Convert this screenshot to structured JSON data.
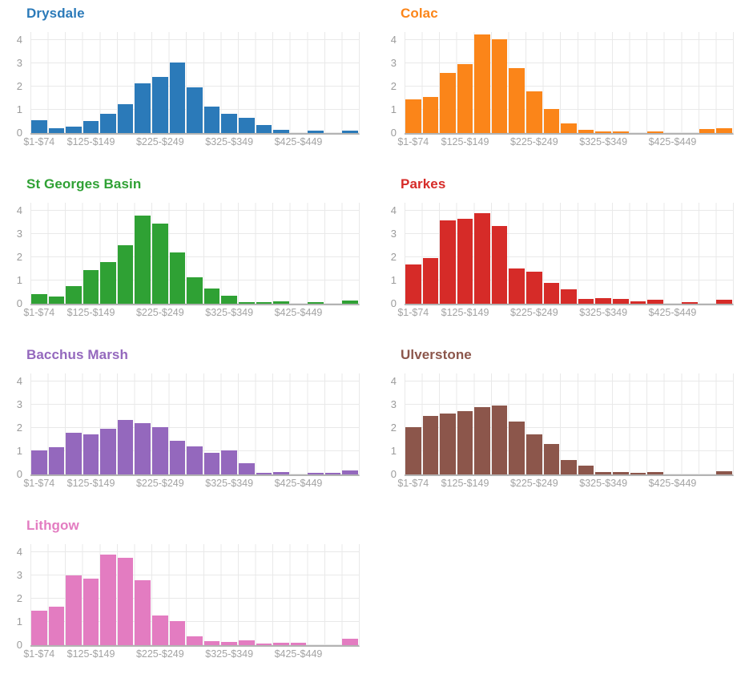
{
  "page": {
    "background": "#ffffff"
  },
  "style": {
    "grid_color": "#e9e9e9",
    "axis_line_color": "#b3b3b3",
    "tick_label_color": "#9b9b9b"
  },
  "chart_data": {
    "type": "bar",
    "subtype": "histogram-small-multiples",
    "grid": true,
    "bins": 19,
    "x_tick_labels": [
      "$1-$74",
      "$125-$149",
      "$225-$249",
      "$325-$349",
      "$425-$449"
    ],
    "x_tick_bin_positions": [
      0,
      3,
      7,
      11,
      15
    ],
    "y_ticks": [
      0,
      1,
      2,
      3,
      4
    ],
    "ylim": [
      0,
      4.35
    ],
    "series": [
      {
        "name": "Drysdale",
        "color": "#2b7ab9",
        "values": [
          0.55,
          0.22,
          0.27,
          0.5,
          0.82,
          1.25,
          2.15,
          2.4,
          3.05,
          1.95,
          1.15,
          0.82,
          0.65,
          0.35,
          0.15,
          0,
          0.12,
          0,
          0.12
        ]
      },
      {
        "name": "Colac",
        "color": "#fb8519",
        "values": [
          1.45,
          1.55,
          2.6,
          2.95,
          4.25,
          4.05,
          2.8,
          1.8,
          1.02,
          0.4,
          0.15,
          0.05,
          0.04,
          0,
          0.08,
          0,
          0,
          0.18,
          0.22
        ]
      },
      {
        "name": "St Georges Basin",
        "color": "#2fa134",
        "values": [
          0.4,
          0.3,
          0.75,
          1.45,
          1.78,
          2.5,
          3.78,
          3.45,
          2.22,
          1.15,
          0.65,
          0.35,
          0.07,
          0.07,
          0.1,
          0,
          0.05,
          0,
          0.15
        ]
      },
      {
        "name": "Parkes",
        "color": "#d62b28",
        "values": [
          1.68,
          1.98,
          3.58,
          3.65,
          3.9,
          3.35,
          1.5,
          1.38,
          0.9,
          0.62,
          0.22,
          0.25,
          0.2,
          0.1,
          0.17,
          0,
          0.05,
          0,
          0.17
        ]
      },
      {
        "name": "Bacchus Marsh",
        "color": "#9468bd",
        "values": [
          1.02,
          1.18,
          1.8,
          1.73,
          1.97,
          2.35,
          2.2,
          2.03,
          1.45,
          1.22,
          0.93,
          1.05,
          0.48,
          0.08,
          0.12,
          0,
          0.07,
          0.08,
          0.18
        ]
      },
      {
        "name": "Ulverstone",
        "color": "#8c564b",
        "values": [
          2.03,
          2.5,
          2.62,
          2.72,
          2.9,
          2.97,
          2.27,
          1.73,
          1.32,
          0.63,
          0.37,
          0.1,
          0.1,
          0.07,
          0.12,
          0,
          0,
          0,
          0.15
        ]
      },
      {
        "name": "Lithgow",
        "color": "#e37cc1",
        "values": [
          1.48,
          1.65,
          3.0,
          2.85,
          3.9,
          3.75,
          2.78,
          1.28,
          1.05,
          0.38,
          0.18,
          0.13,
          0.22,
          0.07,
          0.12,
          0.1,
          0,
          0,
          0.27
        ]
      }
    ]
  }
}
